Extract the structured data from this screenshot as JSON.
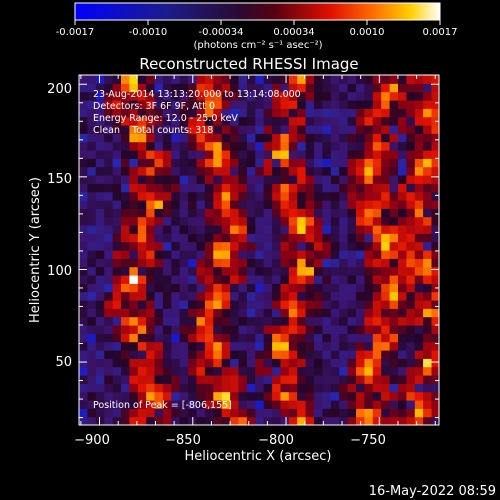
{
  "colorbar": {
    "ticks": [
      "-0.0017",
      "-0.0010",
      "-0.00034",
      "0.00034",
      "0.0010",
      "0.0017"
    ],
    "units": "(photons cm⁻² s⁻¹ asec⁻²)"
  },
  "footer": {
    "timestamp": "16-May-2022 08:59"
  },
  "colors": {
    "background": "#000000",
    "text": "#ffffff"
  },
  "chart_data": {
    "type": "heatmap",
    "title": "Reconstructed RHESSI Image",
    "xlabel": "Heliocentric X (arcsec)",
    "ylabel": "Heliocentric Y (arcsec)",
    "xlim": [
      -911,
      -718
    ],
    "ylim": [
      16,
      205
    ],
    "xticks": [
      -900,
      -850,
      -800,
      -750
    ],
    "xtick_labels": [
      "−900",
      "−850",
      "−800",
      "−750"
    ],
    "yticks": [
      50,
      100,
      150,
      200
    ],
    "ytick_labels": [
      "50",
      "100",
      "150",
      "200"
    ],
    "zlim": [
      -0.0017,
      0.0017
    ],
    "colormap": "rhessi (blue-black-red-yellow-white)",
    "annotations": [
      "23-Aug-2014 13:13:20.000 to 13:14:08.000",
      "Detectors: 3F 6F 9F, Att 0",
      "Energy Range: 12.0 - 25.0 keV",
      "Clean    Total counts: 318"
    ],
    "peak_label": "Position of Peak = [-806,155]",
    "peak": {
      "x": -806,
      "y": 155
    },
    "bright_ridges_x": [
      -880,
      -838,
      -798,
      -752,
      -728
    ]
  }
}
